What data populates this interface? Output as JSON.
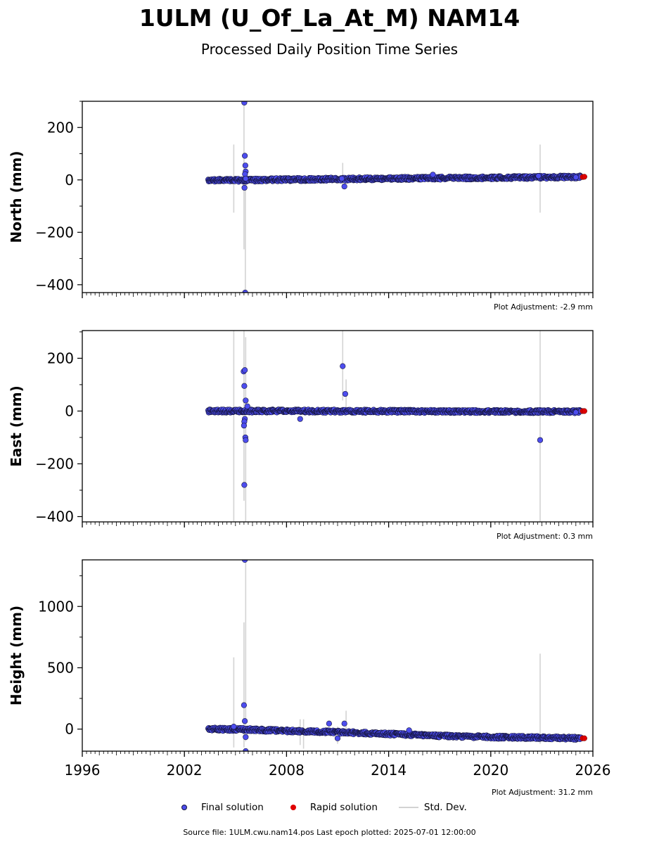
{
  "title": "1ULM (U_Of_La_At_M) NAM14",
  "subtitle": "Processed Daily Position Time Series",
  "footer": "Source file: 1ULM.cwu.nam14.pos  Last epoch plotted: 2025-07-01 12:00:00",
  "legend": {
    "final": "Final solution",
    "rapid": "Rapid solution",
    "std": "Std. Dev."
  },
  "colors": {
    "final": "#4d4dee",
    "final_edge": "#14143c",
    "rapid": "#e00000",
    "std": "#d3d3d3"
  },
  "chart_data": [
    {
      "type": "scatter",
      "ylabel": "North (mm)",
      "adjustment": "Plot Adjustment: -2.9 mm",
      "xlim": [
        1996,
        2026
      ],
      "ylim": [
        -430,
        300
      ],
      "yticks": [
        200,
        0,
        -200,
        -400
      ],
      "ytick_labels": [
        "200",
        "0",
        "−200",
        "−400"
      ],
      "xtick_labels_visible": false,
      "series": [
        {
          "name": "Final solution",
          "kind": "trend",
          "x": [
            2003.4,
            2005.5,
            2008.0,
            2011.0,
            2014.0,
            2017.0,
            2020.0,
            2023.0,
            2025.3
          ],
          "y": [
            -2,
            -1,
            1,
            3,
            5,
            7,
            8,
            10,
            11
          ]
        },
        {
          "name": "Final solution",
          "kind": "outliers",
          "x": [
            2005.52,
            2005.55,
            2005.58,
            2005.6,
            2005.56,
            2005.53,
            2005.57,
            2005.6,
            2011.25,
            2011.4,
            2016.6,
            2022.8,
            2025.0
          ],
          "y": [
            295,
            92,
            55,
            32,
            22,
            -30,
            -430,
            5,
            5,
            -25,
            20,
            15,
            10
          ]
        },
        {
          "name": "Rapid solution",
          "x": [
            2025.4,
            2025.5
          ],
          "y": [
            11,
            12
          ]
        },
        {
          "name": "Std. Dev.",
          "x": [
            2004.9,
            2005.5,
            2005.58,
            2011.3,
            2022.9
          ],
          "ylow": [
            -125,
            -265,
            -430,
            -35,
            -125
          ],
          "yhigh": [
            135,
            290,
            -10,
            65,
            135
          ]
        }
      ]
    },
    {
      "type": "scatter",
      "ylabel": "East (mm)",
      "adjustment": "Plot Adjustment: 0.3 mm",
      "xlim": [
        1996,
        2026
      ],
      "ylim": [
        -420,
        305
      ],
      "yticks": [
        200,
        0,
        -200,
        -400
      ],
      "ytick_labels": [
        "200",
        "0",
        "−200",
        "−400"
      ],
      "xtick_labels_visible": false,
      "series": [
        {
          "name": "Final solution",
          "kind": "trend",
          "x": [
            2003.4,
            2008.0,
            2014.0,
            2020.0,
            2025.3
          ],
          "y": [
            0,
            0,
            -1,
            -2,
            -2
          ]
        },
        {
          "name": "Final solution",
          "kind": "outliers",
          "x": [
            2005.48,
            2005.55,
            2005.52,
            2005.6,
            2005.7,
            2005.55,
            2005.52,
            2005.5,
            2005.58,
            2005.6,
            2005.52,
            2008.8,
            2011.3,
            2011.45,
            2022.9,
            2025.0
          ],
          "y": [
            150,
            155,
            95,
            40,
            18,
            -30,
            -40,
            -55,
            -100,
            -110,
            -280,
            -30,
            170,
            65,
            -110,
            -5
          ]
        },
        {
          "name": "Rapid solution",
          "x": [
            2025.4,
            2025.5
          ],
          "y": [
            0,
            0
          ]
        },
        {
          "name": "Std. Dev.",
          "x": [
            2004.9,
            2005.5,
            2005.6,
            2011.3,
            2011.5,
            2022.9
          ],
          "ylow": [
            -420,
            -340,
            -420,
            40,
            10,
            -420
          ],
          "yhigh": [
            305,
            305,
            280,
            305,
            120,
            305
          ]
        }
      ]
    },
    {
      "type": "scatter",
      "ylabel": "Height (mm)",
      "adjustment": "Plot Adjustment: 31.2 mm",
      "xlim": [
        1996,
        2026
      ],
      "ylim": [
        -180,
        1380
      ],
      "yticks": [
        1000,
        500,
        0
      ],
      "ytick_labels": [
        "1000",
        "500",
        "0"
      ],
      "xticks": [
        1996,
        2002,
        2008,
        2014,
        2020,
        2026
      ],
      "xtick_labels": [
        "1996",
        "2002",
        "2008",
        "2014",
        "2020",
        "2026"
      ],
      "xtick_labels_visible": true,
      "series": [
        {
          "name": "Final solution",
          "kind": "trend",
          "x": [
            2003.4,
            2006.0,
            2008.0,
            2011.0,
            2014.0,
            2017.0,
            2020.0,
            2023.0,
            2025.3
          ],
          "y": [
            0,
            -5,
            -15,
            -25,
            -40,
            -55,
            -65,
            -70,
            -75
          ]
        },
        {
          "name": "Final solution",
          "kind": "outliers",
          "x": [
            2005.55,
            2005.5,
            2005.55,
            2005.6,
            2004.9,
            2010.5,
            2011.4,
            2011.0,
            2015.2,
            2005.6
          ],
          "y": [
            1380,
            195,
            65,
            -65,
            20,
            45,
            45,
            -75,
            -10,
            -180
          ]
        },
        {
          "name": "Rapid solution",
          "x": [
            2025.4,
            2025.5
          ],
          "y": [
            -75,
            -75
          ]
        },
        {
          "name": "Std. Dev.",
          "x": [
            2004.9,
            2005.5,
            2005.6,
            2008.8,
            2009.0,
            2011.0,
            2011.5,
            2022.9
          ],
          "ylow": [
            -150,
            -150,
            -100,
            -130,
            -160,
            -120,
            -40,
            -120
          ],
          "yhigh": [
            585,
            870,
            1380,
            80,
            80,
            20,
            150,
            615
          ]
        }
      ]
    }
  ]
}
